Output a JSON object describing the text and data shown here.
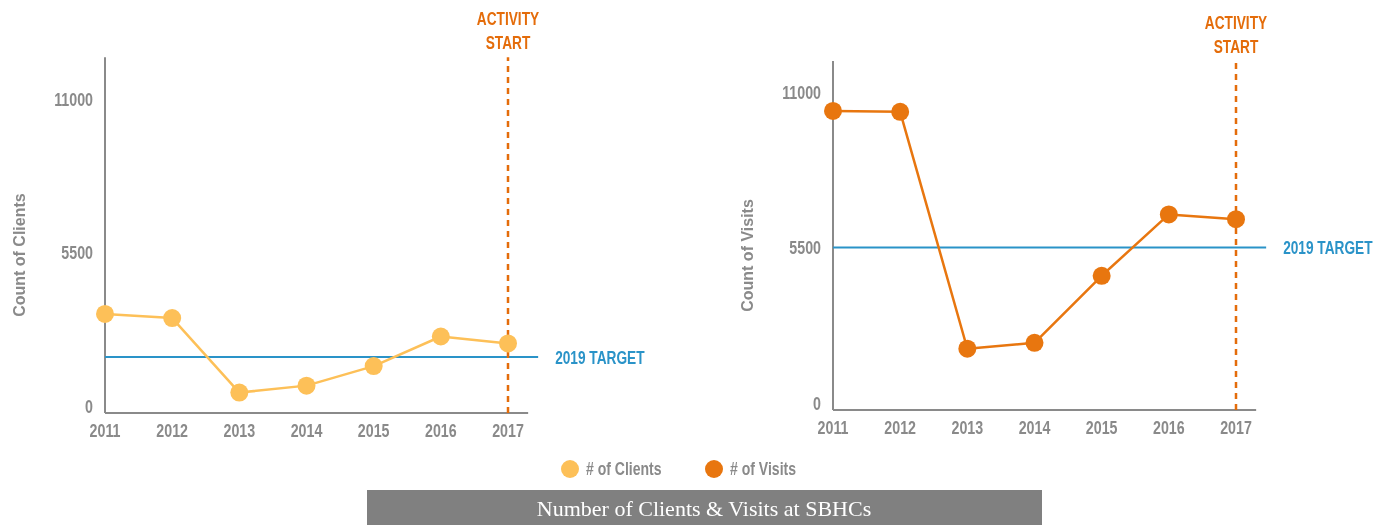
{
  "chart_data": [
    {
      "type": "line",
      "title": "Number of Clients & Visits at SBHCs",
      "ylabel": "Count of Clients",
      "x": [
        2011,
        2012,
        2013,
        2014,
        2015,
        2016,
        2017
      ],
      "series": [
        {
          "name": "# of Clients",
          "color": "#fdc058",
          "values": [
            3300,
            3150,
            480,
            730,
            1430,
            2490,
            2240
          ]
        }
      ],
      "xlim": [
        2011,
        2017.3
      ],
      "xticks": [
        2011,
        2012,
        2013,
        2014,
        2015,
        2016,
        2017
      ],
      "ylim": [
        -250,
        12500
      ],
      "yticks": [
        0,
        5500,
        11000
      ],
      "marker": "circle",
      "line_style": "solid",
      "grid": false,
      "legend": "bottom",
      "ref_lines": [
        {
          "axis": "y",
          "value": 1760,
          "label": "2019 TARGET",
          "color": "#2a93c8",
          "line_style": "solid"
        },
        {
          "axis": "x",
          "value": 2017,
          "label": "ACTIVITY START",
          "color": "#e46c0a",
          "line_style": "dashed"
        }
      ]
    },
    {
      "type": "line",
      "ylabel": "Count of Visits",
      "x": [
        2011,
        2012,
        2013,
        2014,
        2015,
        2016,
        2017
      ],
      "series": [
        {
          "name": "# of Visits",
          "color": "#e8760f",
          "values": [
            10330,
            10300,
            1920,
            2130,
            4500,
            6670,
            6500
          ]
        }
      ],
      "xlim": [
        2011,
        2017.3
      ],
      "xticks": [
        2011,
        2012,
        2013,
        2014,
        2015,
        2016,
        2017
      ],
      "ylim": [
        -250,
        12100
      ],
      "yticks": [
        0,
        5500,
        11000
      ],
      "marker": "circle",
      "line_style": "solid",
      "grid": false,
      "legend": "bottom",
      "ref_lines": [
        {
          "axis": "y",
          "value": 5500,
          "label": "2019 TARGET",
          "color": "#2a93c8",
          "line_style": "solid"
        },
        {
          "axis": "x",
          "value": 2017,
          "label": "ACTIVITY START",
          "color": "#e46c0a",
          "line_style": "dashed"
        }
      ]
    }
  ]
}
